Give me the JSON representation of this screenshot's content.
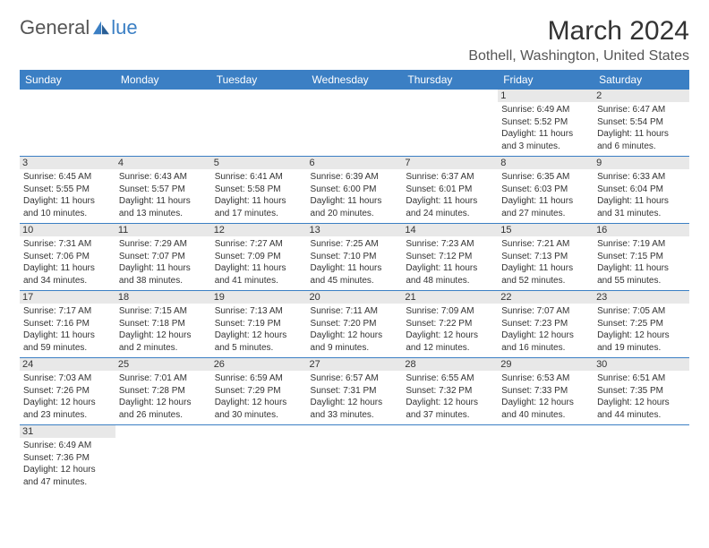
{
  "logo": {
    "text1": "General",
    "text2": "lue"
  },
  "title": "March 2024",
  "location": "Bothell, Washington, United States",
  "header_bg": "#3b7fc4",
  "weekdays": [
    "Sunday",
    "Monday",
    "Tuesday",
    "Wednesday",
    "Thursday",
    "Friday",
    "Saturday"
  ],
  "weeks": [
    [
      null,
      null,
      null,
      null,
      null,
      {
        "n": "1",
        "sr": "6:49 AM",
        "ss": "5:52 PM",
        "dl": "11 hours and 3 minutes."
      },
      {
        "n": "2",
        "sr": "6:47 AM",
        "ss": "5:54 PM",
        "dl": "11 hours and 6 minutes."
      }
    ],
    [
      {
        "n": "3",
        "sr": "6:45 AM",
        "ss": "5:55 PM",
        "dl": "11 hours and 10 minutes."
      },
      {
        "n": "4",
        "sr": "6:43 AM",
        "ss": "5:57 PM",
        "dl": "11 hours and 13 minutes."
      },
      {
        "n": "5",
        "sr": "6:41 AM",
        "ss": "5:58 PM",
        "dl": "11 hours and 17 minutes."
      },
      {
        "n": "6",
        "sr": "6:39 AM",
        "ss": "6:00 PM",
        "dl": "11 hours and 20 minutes."
      },
      {
        "n": "7",
        "sr": "6:37 AM",
        "ss": "6:01 PM",
        "dl": "11 hours and 24 minutes."
      },
      {
        "n": "8",
        "sr": "6:35 AM",
        "ss": "6:03 PM",
        "dl": "11 hours and 27 minutes."
      },
      {
        "n": "9",
        "sr": "6:33 AM",
        "ss": "6:04 PM",
        "dl": "11 hours and 31 minutes."
      }
    ],
    [
      {
        "n": "10",
        "sr": "7:31 AM",
        "ss": "7:06 PM",
        "dl": "11 hours and 34 minutes."
      },
      {
        "n": "11",
        "sr": "7:29 AM",
        "ss": "7:07 PM",
        "dl": "11 hours and 38 minutes."
      },
      {
        "n": "12",
        "sr": "7:27 AM",
        "ss": "7:09 PM",
        "dl": "11 hours and 41 minutes."
      },
      {
        "n": "13",
        "sr": "7:25 AM",
        "ss": "7:10 PM",
        "dl": "11 hours and 45 minutes."
      },
      {
        "n": "14",
        "sr": "7:23 AM",
        "ss": "7:12 PM",
        "dl": "11 hours and 48 minutes."
      },
      {
        "n": "15",
        "sr": "7:21 AM",
        "ss": "7:13 PM",
        "dl": "11 hours and 52 minutes."
      },
      {
        "n": "16",
        "sr": "7:19 AM",
        "ss": "7:15 PM",
        "dl": "11 hours and 55 minutes."
      }
    ],
    [
      {
        "n": "17",
        "sr": "7:17 AM",
        "ss": "7:16 PM",
        "dl": "11 hours and 59 minutes."
      },
      {
        "n": "18",
        "sr": "7:15 AM",
        "ss": "7:18 PM",
        "dl": "12 hours and 2 minutes."
      },
      {
        "n": "19",
        "sr": "7:13 AM",
        "ss": "7:19 PM",
        "dl": "12 hours and 5 minutes."
      },
      {
        "n": "20",
        "sr": "7:11 AM",
        "ss": "7:20 PM",
        "dl": "12 hours and 9 minutes."
      },
      {
        "n": "21",
        "sr": "7:09 AM",
        "ss": "7:22 PM",
        "dl": "12 hours and 12 minutes."
      },
      {
        "n": "22",
        "sr": "7:07 AM",
        "ss": "7:23 PM",
        "dl": "12 hours and 16 minutes."
      },
      {
        "n": "23",
        "sr": "7:05 AM",
        "ss": "7:25 PM",
        "dl": "12 hours and 19 minutes."
      }
    ],
    [
      {
        "n": "24",
        "sr": "7:03 AM",
        "ss": "7:26 PM",
        "dl": "12 hours and 23 minutes."
      },
      {
        "n": "25",
        "sr": "7:01 AM",
        "ss": "7:28 PM",
        "dl": "12 hours and 26 minutes."
      },
      {
        "n": "26",
        "sr": "6:59 AM",
        "ss": "7:29 PM",
        "dl": "12 hours and 30 minutes."
      },
      {
        "n": "27",
        "sr": "6:57 AM",
        "ss": "7:31 PM",
        "dl": "12 hours and 33 minutes."
      },
      {
        "n": "28",
        "sr": "6:55 AM",
        "ss": "7:32 PM",
        "dl": "12 hours and 37 minutes."
      },
      {
        "n": "29",
        "sr": "6:53 AM",
        "ss": "7:33 PM",
        "dl": "12 hours and 40 minutes."
      },
      {
        "n": "30",
        "sr": "6:51 AM",
        "ss": "7:35 PM",
        "dl": "12 hours and 44 minutes."
      }
    ],
    [
      {
        "n": "31",
        "sr": "6:49 AM",
        "ss": "7:36 PM",
        "dl": "12 hours and 47 minutes."
      },
      null,
      null,
      null,
      null,
      null,
      null
    ]
  ],
  "labels": {
    "sunrise": "Sunrise: ",
    "sunset": "Sunset: ",
    "daylight": "Daylight: "
  }
}
